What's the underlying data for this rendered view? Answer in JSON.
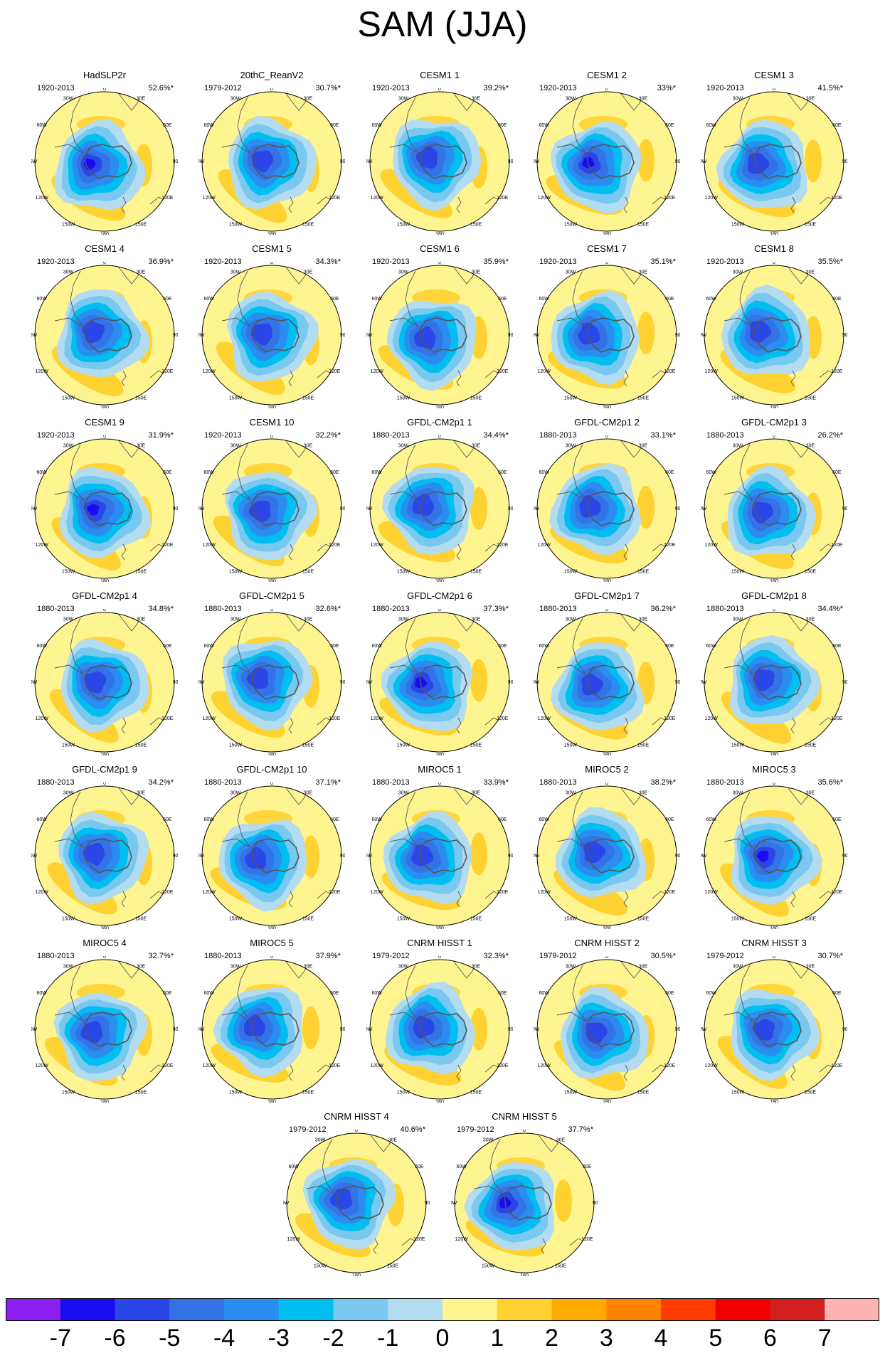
{
  "title": "SAM (JJA)",
  "panels": [
    {
      "name": "HadSLP2r",
      "period": "1920-2013",
      "pct": "52.6%*"
    },
    {
      "name": "20thC_ReanV2",
      "period": "1979-2012",
      "pct": "30.7%*"
    },
    {
      "name": "CESM1 1",
      "period": "1920-2013",
      "pct": "39.2%*"
    },
    {
      "name": "CESM1 2",
      "period": "1920-2013",
      "pct": "33%*"
    },
    {
      "name": "CESM1 3",
      "period": "1920-2013",
      "pct": "41.5%*"
    },
    {
      "name": "CESM1 4",
      "period": "1920-2013",
      "pct": "36.9%*"
    },
    {
      "name": "CESM1 5",
      "period": "1920-2013",
      "pct": "34.3%*"
    },
    {
      "name": "CESM1 6",
      "period": "1920-2013",
      "pct": "35.9%*"
    },
    {
      "name": "CESM1 7",
      "period": "1920-2013",
      "pct": "35.1%*"
    },
    {
      "name": "CESM1 8",
      "period": "1920-2013",
      "pct": "35.5%*"
    },
    {
      "name": "CESM1 9",
      "period": "1920-2013",
      "pct": "31.9%*"
    },
    {
      "name": "CESM1 10",
      "period": "1920-2013",
      "pct": "32.2%*"
    },
    {
      "name": "GFDL-CM2p1 1",
      "period": "1880-2013",
      "pct": "34.4%*"
    },
    {
      "name": "GFDL-CM2p1 2",
      "period": "1880-2013",
      "pct": "33.1%*"
    },
    {
      "name": "GFDL-CM2p1 3",
      "period": "1880-2013",
      "pct": "26.2%*"
    },
    {
      "name": "GFDL-CM2p1 4",
      "period": "1880-2013",
      "pct": "34.8%*"
    },
    {
      "name": "GFDL-CM2p1 5",
      "period": "1880-2013",
      "pct": "32.6%*"
    },
    {
      "name": "GFDL-CM2p1 6",
      "period": "1880-2013",
      "pct": "37.3%*"
    },
    {
      "name": "GFDL-CM2p1 7",
      "period": "1880-2013",
      "pct": "36.2%*"
    },
    {
      "name": "GFDL-CM2p1 8",
      "period": "1880-2013",
      "pct": "34.4%*"
    },
    {
      "name": "GFDL-CM2p1 9",
      "period": "1880-2013",
      "pct": "34.2%*"
    },
    {
      "name": "GFDL-CM2p1 10",
      "period": "1880-2013",
      "pct": "37.1%*"
    },
    {
      "name": "MIROC5 1",
      "period": "1880-2013",
      "pct": "33.9%*"
    },
    {
      "name": "MIROC5 2",
      "period": "1880-2013",
      "pct": "38.2%*"
    },
    {
      "name": "MIROC5 3",
      "period": "1880-2013",
      "pct": "35.6%*"
    },
    {
      "name": "MIROC5 4",
      "period": "1880-2013",
      "pct": "32.7%*"
    },
    {
      "name": "MIROC5 5",
      "period": "1880-2013",
      "pct": "37.9%*"
    },
    {
      "name": "CNRM HISST 1",
      "period": "1979-2012",
      "pct": "32.3%*"
    },
    {
      "name": "CNRM HISST 2",
      "period": "1979-2012",
      "pct": "30.5%*"
    },
    {
      "name": "CNRM HISST 3",
      "period": "1979-2012",
      "pct": "30.7%*"
    },
    {
      "name": "CNRM HISST 4",
      "period": "1979-2012",
      "pct": "40.6%*"
    },
    {
      "name": "CNRM HISST 5",
      "period": "1979-2012",
      "pct": "37.7%*"
    }
  ],
  "lon_labels": [
    "0",
    "30E",
    "60E",
    "90E",
    "120E",
    "150E",
    "180",
    "150W",
    "120W",
    "90W",
    "60W",
    "30W"
  ],
  "colors": {
    "neg7": "#8c1ef0",
    "neg6": "#1a0cf0",
    "neg5": "#2b46e6",
    "neg4": "#3473e6",
    "neg3": "#2a8df0",
    "neg2": "#00bef0",
    "neg1": "#78c8f0",
    "zero": "#b4dcf0",
    "pos0": "#fff590",
    "pos1": "#ffd232",
    "pos2": "#ffaa00",
    "pos3": "#ff8200",
    "pos4": "#ff3c00",
    "pos5": "#f00000",
    "pos6": "#d21e1e",
    "pos7": "#ffb4b4",
    "coast": "#555555"
  },
  "colorbar": {
    "labels": [
      "-7",
      "-6",
      "-5",
      "-4",
      "-3",
      "-2",
      "-1",
      "0",
      "1",
      "2",
      "3",
      "4",
      "5",
      "6",
      "7"
    ],
    "colors": [
      "#8c1ef0",
      "#1a0cf0",
      "#2b46e6",
      "#3473e6",
      "#2a8df0",
      "#00bef0",
      "#78c8f0",
      "#b4dcf0",
      "#fff590",
      "#ffd232",
      "#ffaa00",
      "#ff8200",
      "#ff3c00",
      "#f00000",
      "#d21e1e",
      "#ffb4b4"
    ]
  }
}
